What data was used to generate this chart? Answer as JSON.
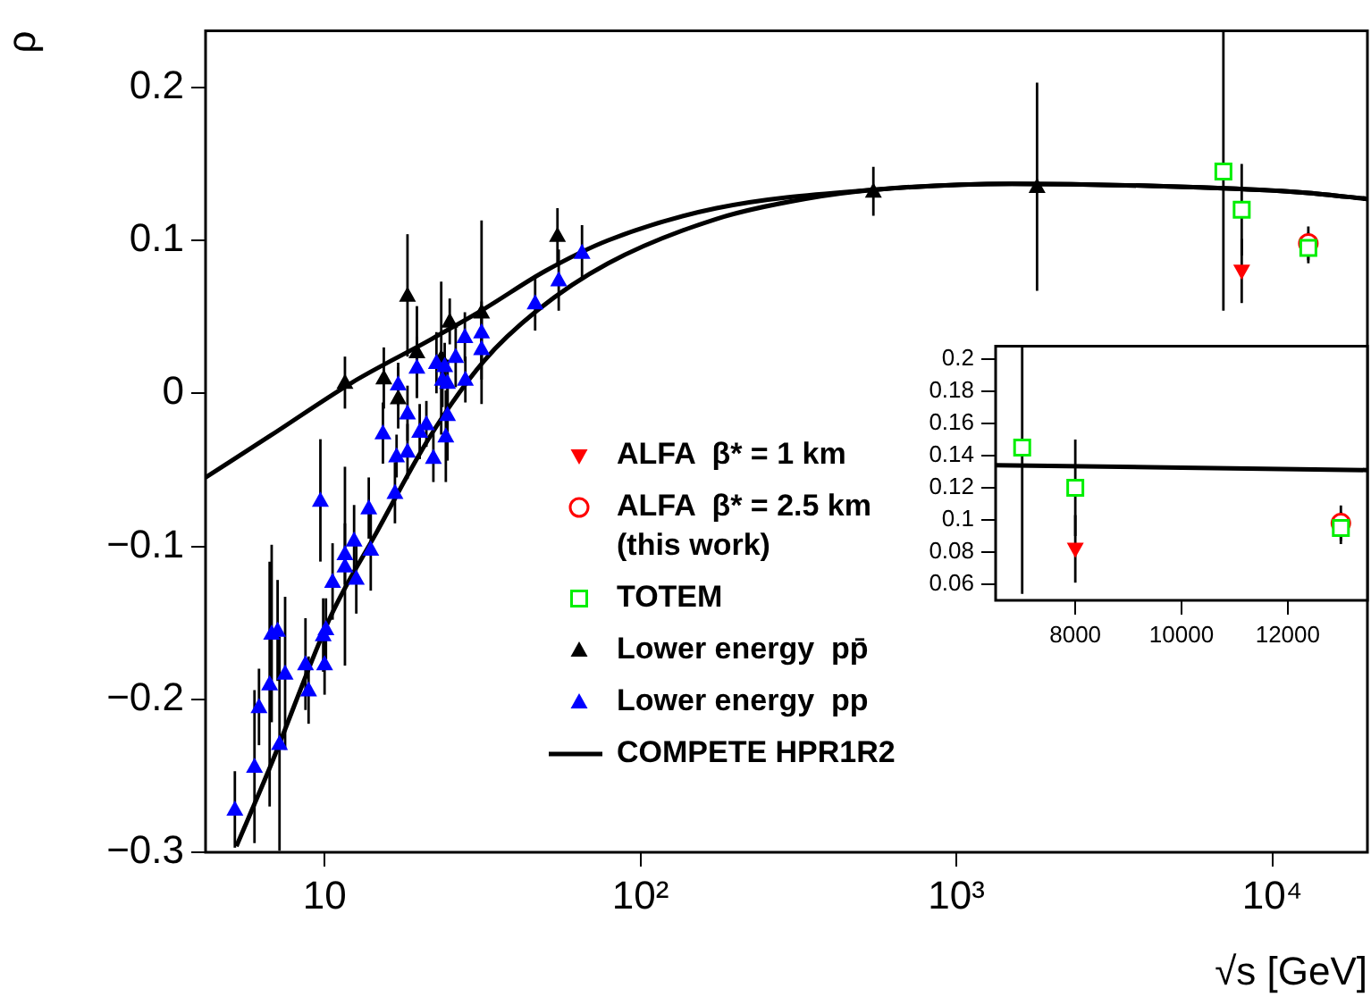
{
  "chart_data": [
    {
      "type": "scatter",
      "xlabel": "√s [GeV]",
      "ylabel": "ρ",
      "log": "x",
      "xlim": [
        4.2,
        20000
      ],
      "xticks": [
        {
          "value": 10,
          "label": "10"
        },
        {
          "value": 100,
          "label": "10²"
        },
        {
          "value": 1000,
          "label": "10³"
        },
        {
          "value": 10000,
          "label": "10⁴"
        }
      ],
      "ylim": [
        -0.3,
        0.237
      ],
      "yticks": [
        {
          "value": -0.3,
          "label": "−0.3"
        },
        {
          "value": -0.2,
          "label": "−0.2"
        },
        {
          "value": -0.1,
          "label": "−0.1"
        },
        0,
        0.1,
        0.2
      ],
      "grid": false,
      "legend": "bottom",
      "series": [
        {
          "name": "ALFA  β* = 1 km",
          "type": "scatter",
          "color": "#ff0000",
          "marker": "triangle-down",
          "x": [
            8000
          ],
          "values": [
            0.08
          ],
          "errors": [
            0.021
          ]
        },
        {
          "name": "ALFA  β* = 2.5 km (this work)",
          "type": "scatter",
          "color": "#ff0000",
          "marker": "circle",
          "x": [
            13000
          ],
          "values": [
            0.098
          ],
          "errors": [
            0.011
          ]
        },
        {
          "name": "TOTEM",
          "type": "scatter",
          "color": "#00ee00",
          "marker": "square",
          "x": [
            7000,
            8000,
            13000
          ],
          "values": [
            0.145,
            0.12,
            0.095
          ],
          "errors": [
            0.091,
            0.03,
            0.01
          ]
        },
        {
          "name": "Lower energy  pp̄",
          "type": "scatter",
          "color": "#000000",
          "marker": "triangle",
          "x": [
            11.6,
            15.4,
            17.1,
            18.3,
            19.6,
            23.4,
            24.9,
            31.4,
            54.6,
            546,
            1800
          ],
          "values": [
            0.007,
            0.01,
            -0.003,
            0.064,
            0.027,
            0.023,
            0.047,
            0.053,
            0.103,
            0.132,
            0.135
          ],
          "errors": [
            0.017,
            0.02,
            0.02,
            0.04,
            0.03,
            0.05,
            0.015,
            0.06,
            0.018,
            0.016,
            0.068
          ]
        },
        {
          "name": "Lower energy  pp",
          "type": "scatter",
          "color": "#0000ff",
          "marker": "triangle",
          "x": [
            5.2,
            6.0,
            6.2,
            6.7,
            6.8,
            7.1,
            7.2,
            7.5,
            8.7,
            8.9,
            9.7,
            9.9,
            10.0,
            10.6,
            11.6,
            12.4,
            13.8,
            15.3,
            16.7,
            16.9,
            17.1,
            18.3,
            19.6,
            22.1,
            22.6,
            23.6,
            24.2,
            24.5,
            26,
            27.8,
            27.9,
            31.4,
            46.4,
            65.3,
            11.6,
            12.6,
            10.1,
            14,
            18.3,
            20,
            21,
            24,
            24.5,
            31.4,
            55.1
          ],
          "values": [
            -0.272,
            -0.244,
            -0.205,
            -0.19,
            -0.157,
            -0.155,
            -0.229,
            -0.183,
            -0.177,
            -0.194,
            -0.07,
            -0.158,
            -0.177,
            -0.123,
            -0.113,
            -0.096,
            -0.075,
            -0.026,
            -0.065,
            -0.041,
            0.006,
            -0.013,
            0.017,
            -0.042,
            0.02,
            0.009,
            -0.028,
            -0.014,
            0.024,
            0.037,
            0.009,
            0.04,
            0.059,
            0.092,
            -0.105,
            -0.121,
            -0.154,
            -0.102,
            -0.038,
            -0.025,
            -0.02,
            0.018,
            0.007,
            0.029,
            0.074
          ],
          "errors": [
            0.025,
            0.05,
            0.025,
            0.08,
            0.058,
            0.033,
            0.07,
            0.05,
            0.03,
            0.022,
            0.04,
            0.024,
            0.02,
            0.025,
            0.065,
            0.023,
            0.02,
            0.02,
            0.02,
            0.014,
            0.014,
            0.018,
            0.02,
            0.016,
            0.02,
            0.018,
            0.03,
            0.03,
            0.02,
            0.016,
            0.015,
            0.02,
            0.018,
            0.018,
            0.02,
            0.023,
            0.02,
            0.027,
            0.018,
            0.018,
            0.015,
            0.015,
            0.015,
            0.02,
            0.02
          ]
        },
        {
          "name": "COMPETE HPR1R2",
          "type": "line",
          "color": "#000000",
          "marker": "none",
          "x": [
            4.2,
            6.7,
            12.2,
            21.6,
            31.9,
            50,
            79,
            174,
            546,
            1500,
            7000,
            13000,
            20000
          ],
          "values": [
            -0.055,
            -0.028,
            0.007,
            0.035,
            0.055,
            0.08,
            0.1,
            0.121,
            0.133,
            0.137,
            0.134,
            0.131,
            0.127
          ]
        },
        {
          "type": "line",
          "color": "#000000",
          "marker": "none",
          "x": [
            5.26,
            6.7,
            10.5,
            14.6,
            21.6,
            31.9,
            47,
            79,
            174,
            330,
            546,
            1500,
            7000,
            13000,
            20000
          ],
          "values": [
            -0.296,
            -0.245,
            -0.145,
            -0.091,
            -0.028,
            0.021,
            0.054,
            0.085,
            0.114,
            0.127,
            0.133,
            0.137,
            0.134,
            0.131,
            0.127
          ]
        }
      ]
    },
    {
      "type": "scatter",
      "xlim": [
        6500,
        13500
      ],
      "xticks": [
        8000,
        10000,
        12000
      ],
      "ylim": [
        0.05,
        0.208
      ],
      "yticks": [
        0.06,
        0.08,
        0.1,
        0.12,
        0.14,
        0.16,
        0.18,
        0.2
      ],
      "grid": false,
      "legend": false,
      "series": [
        {
          "type": "line",
          "color": "#000000",
          "marker": "none",
          "x": [
            6500,
            13500
          ],
          "values": [
            0.134,
            0.131
          ]
        },
        {
          "type": "scatter",
          "color": "#ff0000",
          "marker": "triangle-down",
          "x": [
            8000
          ],
          "values": [
            0.082
          ],
          "errors": [
            0.021
          ]
        },
        {
          "type": "scatter",
          "color": "#ff0000",
          "marker": "circle",
          "x": [
            13000
          ],
          "values": [
            0.098
          ],
          "errors": [
            0.011
          ]
        },
        {
          "type": "scatter",
          "color": "#00ee00",
          "marker": "square",
          "x": [
            7000,
            8000,
            13000
          ],
          "values": [
            0.145,
            0.12,
            0.095
          ],
          "errors": [
            0.091,
            0.03,
            0.01
          ]
        }
      ]
    }
  ]
}
